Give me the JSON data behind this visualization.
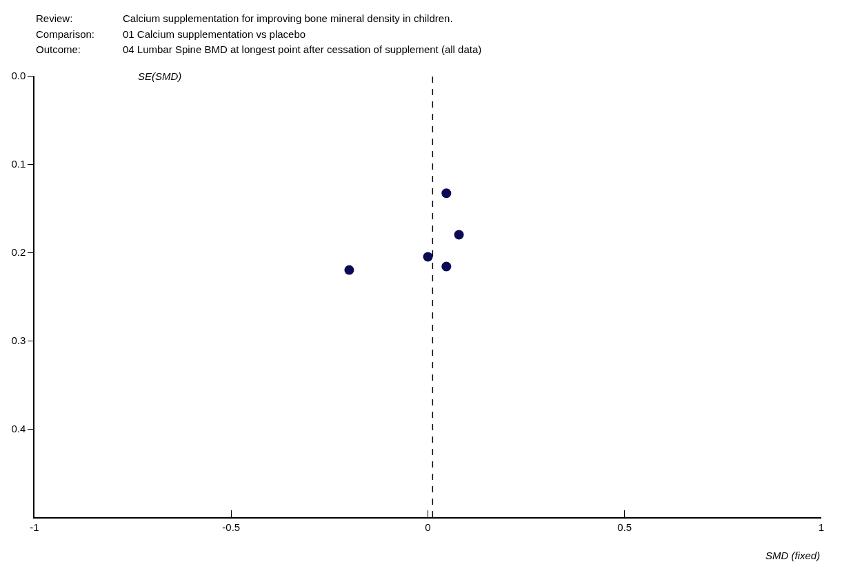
{
  "chart_data": {
    "type": "scatter",
    "annotations": [
      "Review:",
      "Calcium supplementation for improving bone mineral density in children.",
      "Comparison:",
      "01 Calcium supplementation vs placebo",
      "Outcome:",
      "04 Lumbar Spine BMD at longest point after cessation of supplement (all data)"
    ],
    "xlabel": "SMD (fixed)",
    "ylabel": "SE(SMD)",
    "x": [
      0.047,
      0.079,
      0.0,
      0.047,
      -0.2
    ],
    "series": [
      {
        "color": "#0b0b55",
        "values": [
          0.133,
          0.18,
          0.205,
          0.216,
          0.22
        ]
      }
    ],
    "xlim": [
      -1,
      1
    ],
    "xticks": [
      -1,
      -0.5,
      0,
      0.5,
      1
    ],
    "ylim": [
      0.5,
      0
    ],
    "yticks": [
      {
        "value": 0,
        "label": "0.0"
      },
      0.1,
      0.2,
      0.3,
      0.4
    ],
    "ref_lines": [
      {
        "axis": "x",
        "value": 0.012,
        "line_style": "dashed",
        "color": "#000000"
      }
    ],
    "marker": "circle"
  }
}
